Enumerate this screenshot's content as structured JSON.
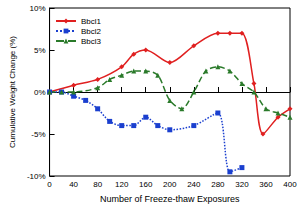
{
  "chart_data": {
    "type": "line",
    "x_label": "Number of Freeze-thaw Exposures",
    "y_label": "Cumulative Weight Change (%)",
    "xlim": [
      0,
      400
    ],
    "xticks": [
      0,
      40,
      80,
      120,
      160,
      200,
      240,
      280,
      320,
      360,
      400
    ],
    "ylim": [
      -10,
      10
    ],
    "yticks": [
      {
        "value": -10,
        "label": "-10%"
      },
      {
        "value": -5,
        "label": "-5%"
      },
      {
        "value": 0,
        "label": "0%"
      },
      {
        "value": 5,
        "label": "5%"
      },
      {
        "value": 10,
        "label": "10%"
      }
    ],
    "grid": false,
    "legend": "top-left",
    "series": [
      {
        "name": "Bbcl1",
        "color": "#e02020",
        "marker": "diamond",
        "line_style": "solid",
        "x": [
          0,
          40,
          80,
          120,
          140,
          160,
          200,
          240,
          280,
          300,
          320,
          340,
          355,
          380,
          400
        ],
        "values": [
          0,
          0.8,
          1.5,
          3,
          4.5,
          5,
          3.5,
          5.5,
          7,
          7,
          7,
          1,
          -5,
          -3,
          -2
        ]
      },
      {
        "name": "Bbcl2",
        "color": "#1a3fcf",
        "marker": "square",
        "line_style": "dotted",
        "x": [
          0,
          20,
          40,
          60,
          80,
          100,
          120,
          140,
          160,
          180,
          200,
          240,
          280,
          300,
          320
        ],
        "values": [
          0,
          0,
          -0.5,
          -1,
          -2,
          -3.5,
          -4,
          -4,
          -3,
          -4,
          -4.5,
          -4,
          -2.5,
          -9.5,
          -9
        ]
      },
      {
        "name": "Bbcl3",
        "color": "#2a7a2a",
        "marker": "triangle",
        "line_style": "dashed",
        "x": [
          0,
          20,
          40,
          80,
          100,
          120,
          140,
          160,
          180,
          200,
          220,
          240,
          260,
          280,
          300,
          320,
          340,
          360,
          380,
          400
        ],
        "values": [
          0,
          0,
          0,
          0.5,
          1.5,
          2,
          2.5,
          2.5,
          2,
          -1,
          -2,
          0,
          2.5,
          3,
          2.5,
          1,
          0,
          -2,
          -2.5,
          -3
        ]
      }
    ]
  }
}
